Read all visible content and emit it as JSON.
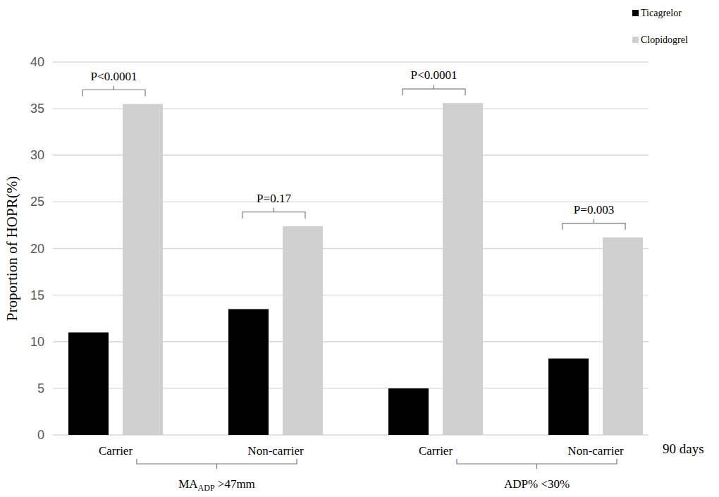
{
  "chart_data": {
    "type": "bar",
    "y_label": "Proportion of HOPR(%)",
    "categories": [
      "Carrier",
      "Non-carrier",
      "Carrier",
      "Non-carrier"
    ],
    "series": [
      {
        "name": "Ticagrelor",
        "color": "#000000",
        "values": [
          11,
          13.5,
          5,
          8.2
        ]
      },
      {
        "name": "Clopidogrel",
        "color": "#d0d0d0",
        "values": [
          35.5,
          22.4,
          35.6,
          21.2
        ]
      }
    ],
    "ylim": [
      0,
      40
    ],
    "yticks": [
      0,
      5,
      10,
      15,
      20,
      25,
      30,
      35,
      40
    ],
    "grid": true,
    "legend": "top-right",
    "annotations": [
      {
        "text": "P<0.0001",
        "category": 0
      },
      {
        "text": "P=0.17",
        "category": 1
      },
      {
        "text": "P<0.0001",
        "category": 2
      },
      {
        "text": "P=0.003",
        "category": 3
      }
    ],
    "groups": [
      {
        "label": "MA",
        "label_sub": "ADP",
        "label_end": " >47mm",
        "categories": [
          0,
          1
        ]
      },
      {
        "label": "ADP% <30%",
        "categories": [
          2,
          3
        ]
      }
    ],
    "x_note": "90 days"
  }
}
